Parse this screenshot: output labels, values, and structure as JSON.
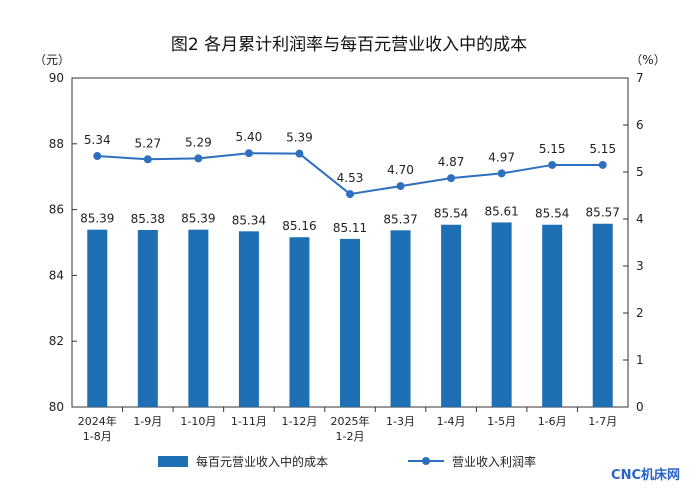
{
  "chart_data": {
    "type": "bar+line",
    "title": "图2  各月累计利润率与每百元营业收入中的成本",
    "left_unit": "（元）",
    "right_unit": "（%）",
    "left_ylim": [
      80,
      90
    ],
    "left_ticks": [
      "80",
      "82",
      "84",
      "86",
      "88",
      "90"
    ],
    "right_ylim": [
      0,
      7
    ],
    "right_ticks": [
      "0",
      "1",
      "2",
      "3",
      "4",
      "5",
      "6",
      "7"
    ],
    "categories": [
      [
        "2024年",
        "1-8月"
      ],
      [
        "1-9月"
      ],
      [
        "1-10月"
      ],
      [
        "1-11月"
      ],
      [
        "1-12月"
      ],
      [
        "2025年",
        "1-2月"
      ],
      [
        "1-3月"
      ],
      [
        "1-4月"
      ],
      [
        "1-5月"
      ],
      [
        "1-6月"
      ],
      [
        "1-7月"
      ]
    ],
    "series": [
      {
        "name": "每百元营业收入中的成本",
        "kind": "bar",
        "axis": "left",
        "color": "#1f6fb5",
        "values": [
          85.39,
          85.38,
          85.39,
          85.34,
          85.16,
          85.11,
          85.37,
          85.54,
          85.61,
          85.54,
          85.57
        ],
        "labels": [
          "85.39",
          "85.38",
          "85.39",
          "85.34",
          "85.16",
          "85.11",
          "85.37",
          "85.54",
          "85.61",
          "85.54",
          "85.57"
        ]
      },
      {
        "name": "营业收入利润率",
        "kind": "line",
        "axis": "right",
        "color": "#2f6fbf",
        "values": [
          5.34,
          5.27,
          5.29,
          5.4,
          5.39,
          4.53,
          4.7,
          4.87,
          4.97,
          5.15,
          5.15
        ],
        "labels": [
          "5.34",
          "5.27",
          "5.29",
          "5.40",
          "5.39",
          "4.53",
          "4.70",
          "4.87",
          "4.97",
          "5.15",
          "5.15"
        ]
      }
    ],
    "legend_position": "bottom"
  },
  "watermark": "CNC机床网"
}
